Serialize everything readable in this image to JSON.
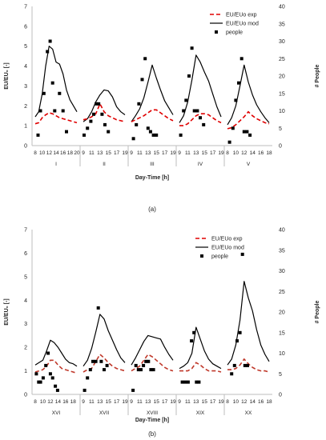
{
  "chart_data": [
    {
      "type": "line",
      "panel_label": "(a)",
      "xlabel": "Day-Time [h]",
      "ylabel": "EU/EU₀ [-]",
      "y2label": "# People",
      "ylim": [
        0,
        7
      ],
      "y2lim": [
        0,
        40
      ],
      "yticks": [
        "0",
        "1",
        "2",
        "3",
        "4",
        "5",
        "6",
        "7"
      ],
      "y2ticks": [
        "0",
        "5",
        "10",
        "15",
        "20",
        "25",
        "30",
        "35",
        "40"
      ],
      "legend": {
        "position": "top-right",
        "entries": [
          "EU/EUo exp",
          "EU/EUo mod",
          "people"
        ]
      },
      "groups": [
        {
          "label": "I",
          "x": [
            8,
            9,
            10,
            11,
            12,
            13,
            14,
            15,
            16,
            17,
            18,
            19,
            20
          ],
          "tick_labels": [
            "8",
            "10",
            "12",
            "14",
            "16",
            "18",
            "20"
          ],
          "exp": [
            1.1,
            1.15,
            1.4,
            1.55,
            1.65,
            1.6,
            1.5,
            1.4,
            1.35,
            1.3,
            1.25,
            1.2,
            1.15
          ],
          "mod": [
            1.45,
            1.7,
            2.6,
            4.0,
            5.0,
            4.85,
            4.2,
            4.1,
            3.6,
            2.8,
            2.3,
            2.0,
            1.7
          ],
          "people": [
            [
              8.8,
              3
            ],
            [
              9.5,
              10
            ],
            [
              10.5,
              15
            ],
            [
              11.5,
              27
            ],
            [
              12.3,
              30
            ],
            [
              13,
              18
            ],
            [
              13.6,
              10
            ],
            [
              15,
              15
            ],
            [
              16,
              10
            ],
            [
              17,
              4
            ]
          ]
        },
        {
          "label": "II",
          "x": [
            9,
            10,
            11,
            12,
            13,
            14,
            15,
            16,
            17,
            18,
            19
          ],
          "tick_labels": [
            "9",
            "11",
            "13",
            "15",
            "17",
            "19"
          ],
          "exp": [
            1.3,
            1.35,
            1.45,
            1.6,
            2.1,
            1.7,
            1.5,
            1.4,
            1.3,
            1.25,
            1.2
          ],
          "mod": [
            1.2,
            1.35,
            1.7,
            2.2,
            2.55,
            2.8,
            2.75,
            2.45,
            1.95,
            1.7,
            1.55
          ],
          "people": [
            [
              9.2,
              3
            ],
            [
              10,
              5
            ],
            [
              10.8,
              7
            ],
            [
              11.5,
              9
            ],
            [
              12.1,
              12
            ],
            [
              12.7,
              12
            ],
            [
              13.5,
              9
            ],
            [
              14.2,
              6
            ],
            [
              15,
              4
            ]
          ]
        },
        {
          "label": "III",
          "x": [
            9,
            10,
            11,
            12,
            13,
            14,
            15,
            16,
            17,
            18,
            19
          ],
          "tick_labels": [
            "9",
            "11",
            "13",
            "15",
            "17",
            "19"
          ],
          "exp": [
            1.2,
            1.3,
            1.4,
            1.5,
            1.65,
            1.8,
            1.8,
            1.65,
            1.5,
            1.35,
            1.25
          ],
          "mod": [
            1.2,
            1.5,
            1.85,
            2.4,
            3.2,
            4.05,
            3.4,
            2.8,
            2.25,
            1.9,
            1.55
          ],
          "people": [
            [
              9.5,
              2
            ],
            [
              10.2,
              6
            ],
            [
              10.8,
              12
            ],
            [
              11.6,
              19
            ],
            [
              12.3,
              25
            ],
            [
              13,
              5
            ],
            [
              13.6,
              4
            ],
            [
              14.3,
              3
            ],
            [
              15,
              3
            ]
          ]
        },
        {
          "label": "IV",
          "x": [
            9,
            10,
            11,
            12,
            13,
            14,
            15,
            16,
            17,
            18,
            19
          ],
          "tick_labels": [
            "9",
            "11",
            "13",
            "15",
            "17",
            "19"
          ],
          "exp": [
            1.0,
            1.0,
            1.1,
            1.3,
            1.5,
            1.6,
            1.6,
            1.55,
            1.4,
            1.25,
            1.15
          ],
          "mod": [
            1.15,
            1.5,
            2.2,
            3.3,
            4.55,
            4.2,
            3.7,
            3.25,
            2.6,
            1.95,
            1.45
          ],
          "people": [
            [
              9.3,
              3
            ],
            [
              10,
              10
            ],
            [
              10.6,
              13
            ],
            [
              11.3,
              20
            ],
            [
              12,
              28
            ],
            [
              12.6,
              10
            ],
            [
              13.3,
              10
            ],
            [
              14,
              8
            ],
            [
              14.8,
              6
            ]
          ]
        },
        {
          "label": "V",
          "x": [
            8,
            9,
            10,
            11,
            12,
            13,
            14,
            15,
            16,
            17,
            18
          ],
          "tick_labels": [
            "8",
            "10",
            "12",
            "14",
            "16",
            "18"
          ],
          "exp": [
            0.85,
            0.9,
            1.05,
            1.25,
            1.45,
            1.7,
            1.5,
            1.35,
            1.25,
            1.15,
            1.1
          ],
          "mod": [
            1.05,
            1.4,
            2.0,
            3.0,
            4.05,
            3.2,
            2.55,
            2.05,
            1.7,
            1.4,
            1.15
          ],
          "people": [
            [
              8.5,
              1
            ],
            [
              9.3,
              5
            ],
            [
              10,
              13
            ],
            [
              10.7,
              18
            ],
            [
              11.4,
              25
            ],
            [
              12,
              4
            ],
            [
              12.7,
              4
            ],
            [
              13.4,
              3
            ]
          ]
        }
      ]
    },
    {
      "type": "line",
      "panel_label": "(b)",
      "xlabel": "Day-Time [h]",
      "ylabel": "EU/EU₀ [-]",
      "y2label": "# People",
      "ylim": [
        0,
        7
      ],
      "y2lim": [
        0,
        40
      ],
      "yticks": [
        "0",
        "1",
        "2",
        "3",
        "4",
        "5",
        "6",
        "7"
      ],
      "y2ticks": [
        "0",
        "5",
        "10",
        "15",
        "20",
        "25",
        "30",
        "35",
        "40"
      ],
      "legend": {
        "position": "top-right",
        "entries": [
          "EU/EUo exp",
          "EU/EUo mod",
          "people"
        ]
      },
      "groups": [
        {
          "label": "XVI",
          "x": [
            8,
            9,
            10,
            11,
            12,
            13,
            14,
            15,
            16,
            17,
            18,
            19
          ],
          "tick_labels": [
            "8",
            "10",
            "12",
            "14",
            "16",
            "18"
          ],
          "exp": [
            0.95,
            1.0,
            1.05,
            1.2,
            1.45,
            1.45,
            1.25,
            1.1,
            1.05,
            1.0,
            0.95,
            0.9
          ],
          "mod": [
            1.25,
            1.35,
            1.45,
            1.85,
            2.3,
            2.2,
            2.0,
            1.75,
            1.5,
            1.35,
            1.3,
            1.2
          ],
          "people": [
            [
              8.3,
              5
            ],
            [
              8.9,
              3
            ],
            [
              9.4,
              3
            ],
            [
              10.1,
              4
            ],
            [
              10.8,
              7
            ],
            [
              11.4,
              10
            ],
            [
              12,
              5
            ],
            [
              12.6,
              4
            ],
            [
              13.3,
              2
            ],
            [
              13.9,
              1
            ]
          ]
        },
        {
          "label": "XVII",
          "x": [
            9,
            10,
            11,
            12,
            13,
            14,
            15,
            16,
            17,
            18,
            19
          ],
          "tick_labels": [
            "9",
            "11",
            "13",
            "15",
            "17",
            "19"
          ],
          "exp": [
            0.95,
            1.05,
            1.1,
            1.4,
            1.7,
            1.55,
            1.35,
            1.2,
            1.1,
            1.05,
            1.0
          ],
          "mod": [
            1.2,
            1.45,
            1.95,
            2.65,
            3.4,
            3.2,
            2.7,
            2.3,
            1.9,
            1.55,
            1.35
          ],
          "people": [
            [
              9.3,
              1
            ],
            [
              10,
              4
            ],
            [
              10.7,
              6
            ],
            [
              11.3,
              8
            ],
            [
              12,
              8
            ],
            [
              12.6,
              21
            ],
            [
              13.3,
              8
            ],
            [
              14,
              6
            ],
            [
              14.7,
              7
            ]
          ]
        },
        {
          "label": "XVIII",
          "x": [
            9,
            10,
            11,
            12,
            13,
            14,
            15,
            16,
            17,
            18,
            19
          ],
          "tick_labels": [
            "9",
            "11",
            "13",
            "15",
            "17",
            "19"
          ],
          "exp": [
            1.0,
            1.1,
            1.2,
            1.45,
            1.7,
            1.6,
            1.45,
            1.3,
            1.15,
            1.05,
            1.0
          ],
          "mod": [
            1.25,
            1.55,
            1.9,
            2.25,
            2.5,
            2.45,
            2.4,
            2.35,
            2.0,
            1.7,
            1.45
          ],
          "people": [
            [
              9.4,
              1
            ],
            [
              10.1,
              7
            ],
            [
              10.7,
              6
            ],
            [
              11.3,
              6
            ],
            [
              11.9,
              7
            ],
            [
              12.5,
              8
            ],
            [
              13.1,
              8
            ],
            [
              13.7,
              6
            ],
            [
              14.3,
              6
            ]
          ]
        },
        {
          "label": "XIX",
          "x": [
            9,
            10,
            11,
            12,
            13,
            14,
            15,
            16,
            17,
            18,
            19
          ],
          "tick_labels": [
            "9",
            "11",
            "13",
            "15",
            "17",
            "19"
          ],
          "exp": [
            1.0,
            1.0,
            1.0,
            1.1,
            1.35,
            1.25,
            1.1,
            1.0,
            1.0,
            1.0,
            0.95
          ],
          "mod": [
            1.1,
            1.2,
            1.35,
            1.75,
            2.85,
            2.35,
            1.85,
            1.5,
            1.3,
            1.2,
            1.1
          ],
          "people": [
            [
              9.7,
              3
            ],
            [
              10.4,
              3
            ],
            [
              11.1,
              3
            ],
            [
              11.9,
              13
            ],
            [
              12.5,
              15
            ],
            [
              13.1,
              3
            ],
            [
              13.7,
              3
            ]
          ]
        },
        {
          "label": "XX",
          "x": [
            8,
            9,
            10,
            11,
            12,
            13,
            14,
            15,
            16,
            17,
            18
          ],
          "tick_labels": [
            "8",
            "10",
            "12",
            "14",
            "16",
            "18"
          ],
          "exp": [
            1.05,
            1.05,
            1.1,
            1.25,
            1.5,
            1.3,
            1.15,
            1.05,
            1.0,
            1.0,
            0.95
          ],
          "mod": [
            1.25,
            1.5,
            2.1,
            3.15,
            4.8,
            4.1,
            3.55,
            2.75,
            2.1,
            1.7,
            1.4
          ],
          "people": [
            [
              9,
              5
            ],
            [
              9.7,
              7
            ],
            [
              10.3,
              13
            ],
            [
              11,
              15
            ],
            [
              11.6,
              34
            ],
            [
              12.2,
              7
            ],
            [
              12.8,
              7
            ]
          ]
        }
      ]
    }
  ]
}
